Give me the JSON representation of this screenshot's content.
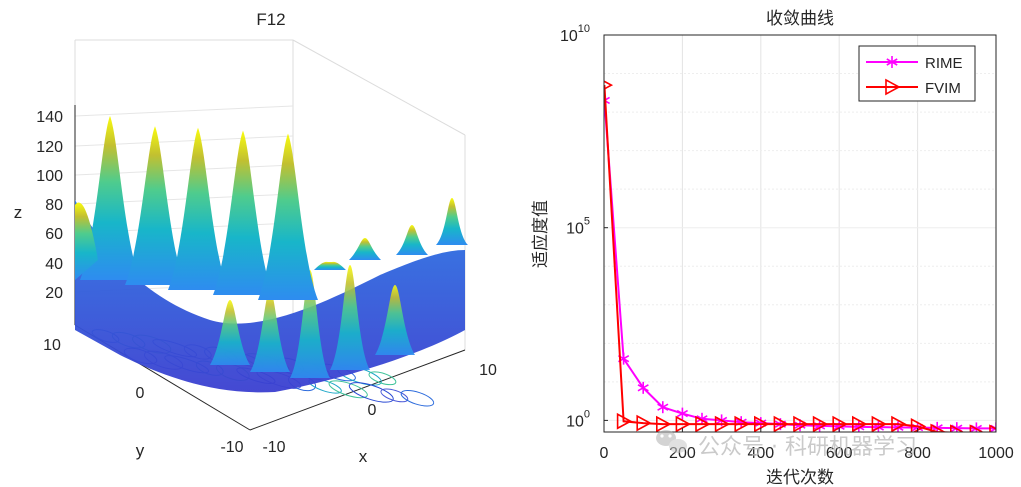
{
  "chart_data": [
    {
      "type": "surface",
      "title": "F12",
      "xlabel": "x",
      "ylabel": "y",
      "zlabel": "z",
      "x_ticks": [
        "-10",
        "0",
        "10"
      ],
      "y_ticks": [
        "-10",
        "0",
        "10"
      ],
      "z_ticks": [
        "20",
        "40",
        "60",
        "80",
        "100",
        "120",
        "140"
      ],
      "xlim": [
        -10,
        10
      ],
      "ylim": [
        -10,
        10
      ],
      "zlim": [
        0,
        150
      ],
      "peak_values": [
        140,
        133,
        132,
        130,
        128
      ],
      "grid": true,
      "colormap": [
        "#3e26a8",
        "#2e8cf0",
        "#18b6c9",
        "#4fcc8d",
        "#c2c030",
        "#f9fb0e"
      ]
    },
    {
      "type": "line",
      "title": "收敛曲线",
      "xlabel": "迭代次数",
      "ylabel": "适应度值",
      "yscale": "log",
      "xlim": [
        0,
        1000
      ],
      "ylim": [
        0.5,
        10000000000
      ],
      "x_ticks": [
        "0",
        "200",
        "400",
        "600",
        "800",
        "1000"
      ],
      "y_ticks": [
        {
          "base": "10",
          "exp": "0"
        },
        {
          "base": "10",
          "exp": "5"
        },
        {
          "base": "10",
          "exp": "10"
        }
      ],
      "grid": true,
      "legend_position": "top-right",
      "x": [
        1,
        50,
        100,
        150,
        200,
        250,
        300,
        350,
        400,
        450,
        500,
        550,
        600,
        650,
        700,
        750,
        800,
        850,
        900,
        950,
        1000
      ],
      "series": [
        {
          "name": "RIME",
          "color": "#ff00ff",
          "marker": "asterisk",
          "values": [
            200000000,
            40,
            7,
            2.2,
            1.5,
            1.1,
            1.0,
            0.9,
            0.85,
            0.8,
            0.75,
            0.72,
            0.7,
            0.68,
            0.67,
            0.66,
            0.65,
            0.64,
            0.63,
            0.62,
            0.62
          ]
        },
        {
          "name": "FVIM",
          "color": "#ff0000",
          "marker": "triangle-right",
          "values": [
            500000000,
            0.95,
            0.85,
            0.8,
            0.8,
            0.8,
            0.8,
            0.8,
            0.8,
            0.8,
            0.8,
            0.8,
            0.8,
            0.8,
            0.8,
            0.8,
            0.7,
            0.5,
            0.48,
            0.48,
            0.48
          ]
        }
      ]
    }
  ],
  "watermark": {
    "text": "公众号 · 科研机器学习",
    "icon": "wechat-icon"
  }
}
